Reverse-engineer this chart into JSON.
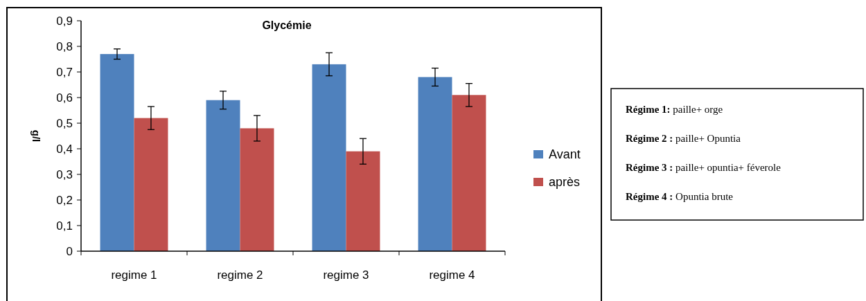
{
  "chart_data": {
    "type": "bar",
    "title": "Glycémie",
    "ylabel": "g/l",
    "categories": [
      "regime 1",
      "regime 2",
      "regime 3",
      "regime 4"
    ],
    "series": [
      {
        "name": "Avant",
        "color": "#4f81bd",
        "values": [
          0.77,
          0.59,
          0.73,
          0.68
        ],
        "errors": [
          0.02,
          0.035,
          0.045,
          0.035
        ]
      },
      {
        "name": "après",
        "color": "#c0504d",
        "values": [
          0.52,
          0.48,
          0.39,
          0.61
        ],
        "errors": [
          0.045,
          0.05,
          0.05,
          0.045
        ]
      }
    ],
    "ylim": [
      0,
      0.9
    ],
    "yticks": [
      {
        "value": 0,
        "label": "0"
      },
      {
        "value": 0.1,
        "label": "0,1"
      },
      {
        "value": 0.2,
        "label": "0,2"
      },
      {
        "value": 0.3,
        "label": "0,3"
      },
      {
        "value": 0.4,
        "label": "0,4"
      },
      {
        "value": 0.5,
        "label": "0,5"
      },
      {
        "value": 0.6,
        "label": "0,6"
      },
      {
        "value": 0.7,
        "label": "0,7"
      },
      {
        "value": 0.8,
        "label": "0,8"
      },
      {
        "value": 0.9,
        "label": "0,9"
      }
    ],
    "grid": false,
    "legend": "right",
    "annotations": [
      "Régime 1: paille+ orge",
      "Régime 2 : paille+ Opuntia",
      "Régime 3 : paille+ opuntia+ féverole",
      "Régime 4 : Opuntia brute"
    ]
  }
}
